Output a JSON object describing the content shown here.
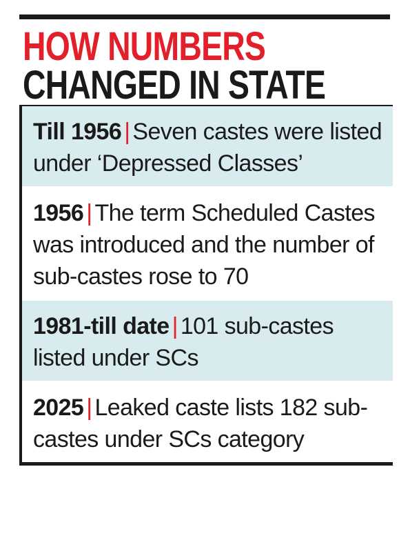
{
  "header": {
    "title_line1": "HOW NUMBERS",
    "title_line2": "CHANGED IN STATE"
  },
  "separator": "|",
  "rows": [
    {
      "label": "Till 1956",
      "text": "Seven castes were listed under ‘Depressed Classes’"
    },
    {
      "label": "1956",
      "text": "The term Scheduled Castes was introduced and the number of sub-castes rose to 70"
    },
    {
      "label": "1981-till date",
      "text": "101 sub-castes listed under SCs"
    },
    {
      "label": "2025",
      "text": "Leaked caste lists 182 sub-castes under SCs category"
    }
  ]
}
